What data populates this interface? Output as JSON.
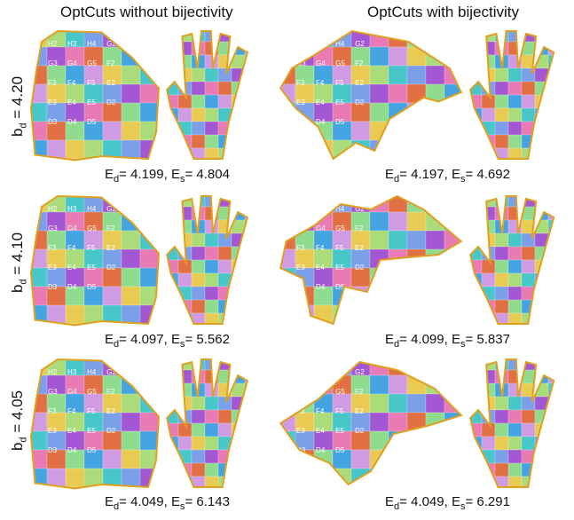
{
  "columns": [
    {
      "title": "OptCuts without bijectivity"
    },
    {
      "title": "OptCuts with bijectivity"
    }
  ],
  "rows": [
    {
      "label_prefix": "b",
      "label_sub": "d",
      "label_value": "= 4.20",
      "left": {
        "ed_label": "E",
        "ed_sub": "d",
        "ed": "= 4.199, ",
        "es_label": "E",
        "es_sub": "s",
        "es": "= 4.804"
      },
      "right": {
        "ed_label": "E",
        "ed_sub": "d",
        "ed": "= 4.197, ",
        "es_label": "E",
        "es_sub": "s",
        "es": "= 4.692"
      }
    },
    {
      "label_prefix": "b",
      "label_sub": "d",
      "label_value": "= 4.10",
      "left": {
        "ed_label": "E",
        "ed_sub": "d",
        "ed": "= 4.097, ",
        "es_label": "E",
        "es_sub": "s",
        "es": "= 5.562"
      },
      "right": {
        "ed_label": "E",
        "ed_sub": "d",
        "ed": "= 4.099, ",
        "es_label": "E",
        "es_sub": "s",
        "es": "= 5.837"
      }
    },
    {
      "label_prefix": "b",
      "label_sub": "d",
      "label_value": "= 4.05",
      "left": {
        "ed_label": "E",
        "ed_sub": "d",
        "ed": "= 4.049, ",
        "es_label": "E",
        "es_sub": "s",
        "es": "= 6.143"
      },
      "right": {
        "ed_label": "E",
        "ed_sub": "d",
        "ed": "= 4.049, ",
        "es_label": "E",
        "es_sub": "s",
        "es": "= 6.291"
      }
    }
  ],
  "uv_grid_labels": [
    "H2",
    "H3",
    "H4",
    "G2",
    "G3",
    "G4",
    "G5",
    "F2",
    "F3",
    "F4",
    "F5",
    "E2",
    "E3",
    "E4",
    "E5",
    "D2",
    "D3",
    "D4",
    "D5"
  ],
  "colors": {
    "seam": "#e0a020",
    "checker": [
      "#e8c84a",
      "#8fd14f",
      "#3fc4c9",
      "#4f7fe0",
      "#a04fd0",
      "#e04f9a",
      "#e06a3a",
      "#6ad06a",
      "#3aa0e0",
      "#c07ad8"
    ]
  }
}
